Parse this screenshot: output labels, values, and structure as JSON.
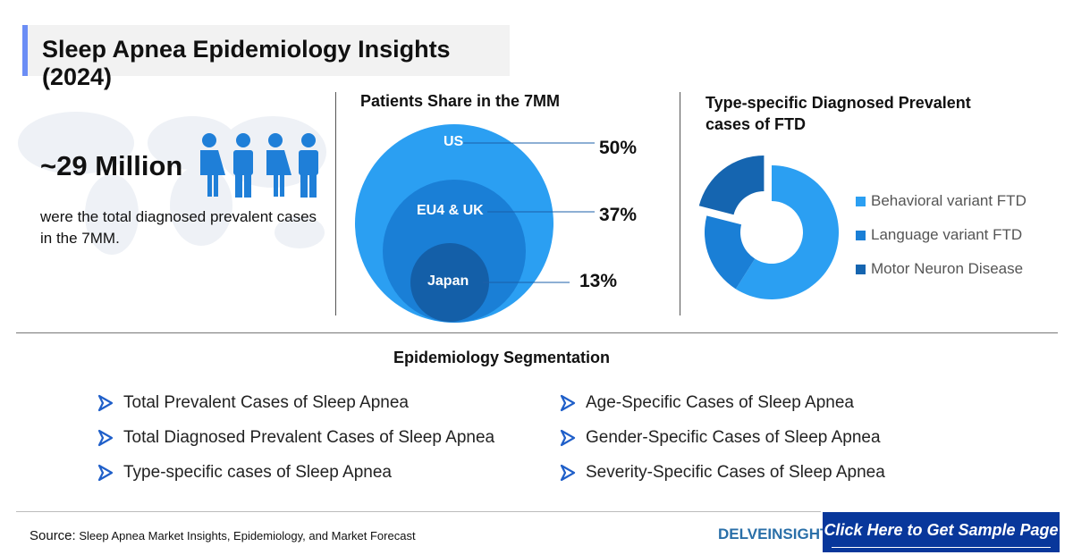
{
  "title": "Sleep Apnea Epidemiology Insights (2024)",
  "stat": {
    "value": "~29 Million",
    "caption": "were the total diagnosed prevalent cases in the 7MM."
  },
  "share": {
    "title": "Patients Share in the 7MM",
    "items": [
      {
        "label": "US",
        "value": "50%"
      },
      {
        "label": "EU4 & UK",
        "value": "37%"
      },
      {
        "label": "Japan",
        "value": "13%"
      }
    ],
    "colors": [
      "#2b9ff2",
      "#1a7fd6",
      "#145fa8"
    ]
  },
  "chart_data": {
    "type": "pie",
    "title": "Type-specific Diagnosed Prevalent cases of FTD",
    "categories": [
      "Behavioral variant FTD",
      "Language variant FTD",
      "Motor Neuron Disease"
    ],
    "values": [
      59,
      20,
      21
    ],
    "colors": [
      "#2b9ff2",
      "#1a7fd6",
      "#1565b0"
    ],
    "legend": "right",
    "donut": true
  },
  "segmentation": {
    "title": "Epidemiology Segmentation",
    "left": [
      "Total Prevalent Cases of Sleep Apnea",
      "Total Diagnosed Prevalent Cases of Sleep Apnea",
      "Type-specific cases of Sleep Apnea"
    ],
    "right": [
      "Age-Specific Cases of Sleep Apnea",
      "Gender-Specific Cases of Sleep Apnea",
      "Severity-Specific Cases of Sleep Apnea"
    ]
  },
  "footer": {
    "source_label": "Source:",
    "source": "Sleep Apnea Market Insights, Epidemiology, and Market Forecast",
    "logo": "DELVEINSIGHT",
    "cta": "Click Here to Get Sample Page"
  }
}
